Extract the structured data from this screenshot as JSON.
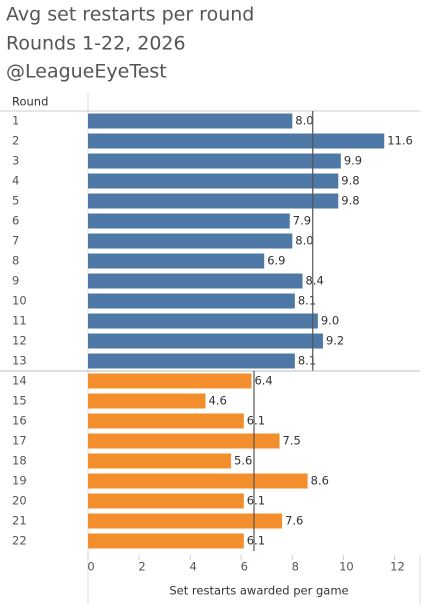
{
  "chart_data": {
    "type": "bar",
    "title": "Avg set restarts per round",
    "subtitle": "Rounds 1-22, 2026",
    "author": "@LeagueEyeTest",
    "category_header": "Round",
    "x_label": "Set restarts awarded per game",
    "xlim": [
      0,
      13
    ],
    "xticks": [
      0,
      2,
      4,
      6,
      8,
      10,
      12
    ],
    "groups": [
      {
        "color": "#4e79a7",
        "average": 8.8,
        "categories": [
          "1",
          "2",
          "3",
          "4",
          "5",
          "6",
          "7",
          "8",
          "9",
          "10",
          "11",
          "12",
          "13"
        ],
        "values": [
          8.0,
          11.6,
          9.9,
          9.8,
          9.8,
          7.9,
          8.0,
          6.9,
          8.4,
          8.1,
          9.0,
          9.2,
          8.1
        ],
        "value_labels": [
          "8.0",
          "11.6",
          "9.9",
          "9.8",
          "9.8",
          "7.9",
          "8.0",
          "6.9",
          "8.4",
          "8.1",
          "9.0",
          "9.2",
          "8.1"
        ]
      },
      {
        "color": "#f28e2b",
        "average": 6.5,
        "categories": [
          "14",
          "15",
          "16",
          "17",
          "18",
          "19",
          "20",
          "21",
          "22"
        ],
        "values": [
          6.4,
          4.6,
          6.1,
          7.5,
          5.6,
          8.6,
          6.1,
          7.6,
          6.1
        ],
        "value_labels": [
          "6.4",
          "4.6",
          "6.1",
          "7.5",
          "5.6",
          "8.6",
          "6.1",
          "7.6",
          "6.1"
        ]
      }
    ]
  }
}
